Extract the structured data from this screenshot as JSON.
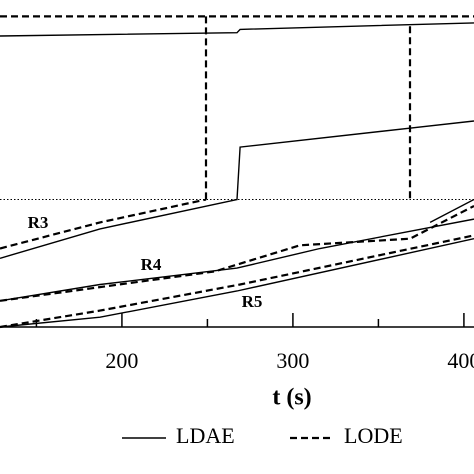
{
  "chart_data": {
    "type": "line",
    "x_label": "t (s)",
    "annotations": [
      "R3",
      "R4",
      "R5"
    ],
    "reference_line": 0.39,
    "xlim": [
      128.7,
      405.9
    ],
    "ylim": [
      0,
      1
    ],
    "xticks": [
      200,
      300,
      400
    ],
    "xminor": [
      150,
      250,
      350
    ],
    "series": [
      {
        "name": "LDAE",
        "color": "#000",
        "dash": "solid",
        "x": [
          128.7,
          267.3,
          269.1,
          405.9,
          null,
          128.7,
          187.2,
          267.3,
          269.1,
          405.9,
          null,
          380.2,
          405.9,
          null,
          128.7,
          187.2,
          267.3,
          315.8,
          405.9,
          null,
          128.7,
          187.2,
          267.3,
          405.9
        ],
        "values": [
          0.89,
          0.9,
          0.91,
          0.93,
          null,
          0.21,
          0.3,
          0.39,
          0.55,
          0.63,
          null,
          0.32,
          0.39,
          null,
          0.08,
          0.13,
          0.18,
          0.24,
          0.33,
          null,
          0.0,
          0.03,
          0.11,
          0.27
        ]
      },
      {
        "name": "LODE",
        "color": "#000",
        "dash": "dashed",
        "x": [
          128.7,
          405.9,
          null,
          249.2,
          249.2,
          null,
          368.5,
          368.5,
          null,
          128.7,
          187.2,
          249.2,
          null,
          128.7,
          254.4,
          304.1,
          368.5,
          405.9,
          null,
          128.7,
          187.2,
          269.1,
          405.9
        ],
        "values": [
          0.95,
          0.95,
          null,
          0.95,
          0.39,
          null,
          0.92,
          0.39,
          null,
          0.24,
          0.32,
          0.39,
          null,
          0.08,
          0.17,
          0.25,
          0.27,
          0.37,
          null,
          0.0,
          0.05,
          0.13,
          0.28
        ]
      }
    ]
  }
}
